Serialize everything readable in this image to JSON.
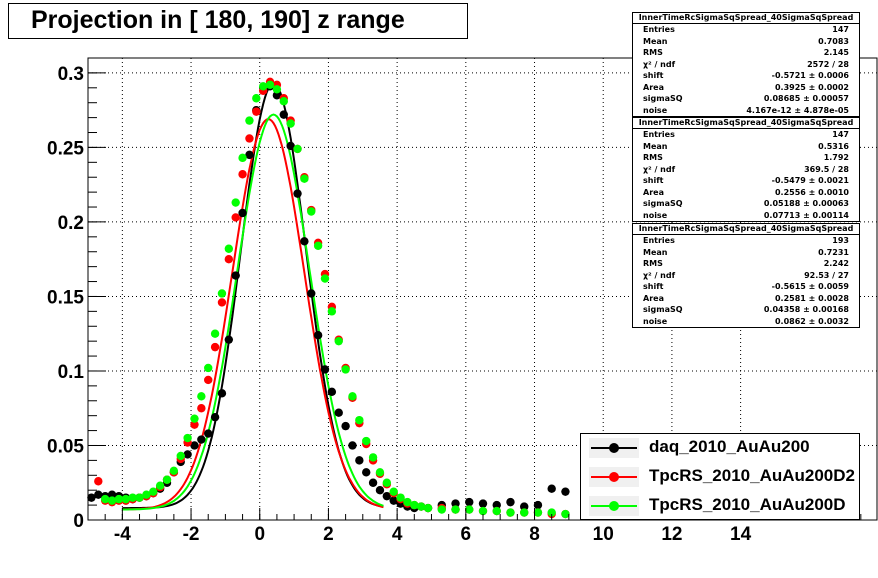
{
  "title": "Projection in [ 180, 190] z range",
  "colors": {
    "daq": "#000000",
    "d2": "#ff0000",
    "d": "#00ff00"
  },
  "chart_data": {
    "type": "scatter",
    "xlim": [
      -5,
      18
    ],
    "ylim": [
      0,
      0.31
    ],
    "x_ticks": [
      "-4",
      "-2",
      "0",
      "2",
      "4",
      "6",
      "8",
      "10",
      "12",
      "14"
    ],
    "y_ticks": [
      "0",
      "0.05",
      "0.1",
      "0.15",
      "0.2",
      "0.25",
      "0.3"
    ],
    "grid": true,
    "legend_position": "bottom-right",
    "series": [
      {
        "name": "daq_2010_AuAu200",
        "color": "#000000",
        "fit": {
          "mean": 0.4,
          "sigma": 0.95,
          "amp": 0.285,
          "base": 0.008
        },
        "x": [
          -4.9,
          -4.7,
          -4.5,
          -4.3,
          -4.1,
          -3.9,
          -3.7,
          -3.5,
          -3.3,
          -3.1,
          -2.9,
          -2.7,
          -2.5,
          -2.3,
          -2.1,
          -1.9,
          -1.7,
          -1.5,
          -1.3,
          -1.1,
          -0.9,
          -0.7,
          -0.5,
          -0.3,
          -0.1,
          0.1,
          0.3,
          0.5,
          0.7,
          0.9,
          1.1,
          1.3,
          1.5,
          1.7,
          1.9,
          2.1,
          2.3,
          2.5,
          2.7,
          2.9,
          3.1,
          3.3,
          3.5,
          3.7,
          3.9,
          4.1,
          4.3,
          4.5,
          4.7,
          4.9,
          5.3,
          5.7,
          6.1,
          6.5,
          6.9,
          7.3,
          7.7,
          8.1,
          8.5,
          8.9
        ],
        "y": [
          0.015,
          0.017,
          0.016,
          0.017,
          0.016,
          0.015,
          0.014,
          0.015,
          0.016,
          0.018,
          0.021,
          0.025,
          0.032,
          0.039,
          0.044,
          0.05,
          0.054,
          0.058,
          0.069,
          0.085,
          0.121,
          0.164,
          0.206,
          0.245,
          0.275,
          0.29,
          0.291,
          0.285,
          0.272,
          0.251,
          0.219,
          0.187,
          0.152,
          0.124,
          0.101,
          0.086,
          0.072,
          0.063,
          0.05,
          0.04,
          0.032,
          0.025,
          0.02,
          0.016,
          0.013,
          0.011,
          0.009,
          0.008,
          0.009,
          0.008,
          0.01,
          0.011,
          0.012,
          0.011,
          0.01,
          0.012,
          0.009,
          0.01,
          0.021,
          0.019
        ]
      },
      {
        "name": "TpcRS_2010_AuAu200D2",
        "color": "#ff0000",
        "fit": {
          "mean": 0.25,
          "sigma": 1.05,
          "amp": 0.262,
          "base": 0.007
        },
        "x": [
          -4.7,
          -4.5,
          -4.3,
          -4.1,
          -3.9,
          -3.7,
          -3.5,
          -3.3,
          -3.1,
          -2.9,
          -2.7,
          -2.5,
          -2.3,
          -2.1,
          -1.9,
          -1.7,
          -1.5,
          -1.3,
          -1.1,
          -0.9,
          -0.7,
          -0.5,
          -0.3,
          -0.1,
          0.1,
          0.3,
          0.5,
          0.7,
          0.9,
          1.1,
          1.3,
          1.5,
          1.7,
          1.9,
          2.1,
          2.3,
          2.5,
          2.7,
          2.9,
          3.1,
          3.3,
          3.5,
          3.7,
          3.9,
          4.1,
          4.3,
          4.5,
          4.7,
          4.9,
          5.3,
          5.7,
          6.1,
          6.5,
          6.9,
          7.3,
          7.7,
          8.1,
          8.5,
          8.9
        ],
        "y": [
          0.026,
          0.013,
          0.012,
          0.013,
          0.013,
          0.014,
          0.015,
          0.016,
          0.018,
          0.022,
          0.027,
          0.032,
          0.041,
          0.052,
          0.064,
          0.075,
          0.094,
          0.116,
          0.146,
          0.175,
          0.203,
          0.232,
          0.256,
          0.274,
          0.288,
          0.294,
          0.292,
          0.283,
          0.268,
          0.249,
          0.23,
          0.208,
          0.186,
          0.165,
          0.143,
          0.121,
          0.102,
          0.082,
          0.065,
          0.051,
          0.04,
          0.031,
          0.024,
          0.018,
          0.014,
          0.011,
          0.01,
          0.009,
          0.008,
          0.008,
          0.007,
          0.007,
          0.006,
          0.006,
          0.005,
          0.005,
          0.005,
          0.004,
          0.004
        ]
      },
      {
        "name": "TpcRS_2010_AuAu200D",
        "color": "#00ff00",
        "fit": {
          "mean": 0.4,
          "sigma": 1.05,
          "amp": 0.265,
          "base": 0.007
        },
        "x": [
          -4.5,
          -4.3,
          -4.1,
          -3.9,
          -3.7,
          -3.5,
          -3.3,
          -3.1,
          -2.9,
          -2.7,
          -2.5,
          -2.3,
          -2.1,
          -1.9,
          -1.7,
          -1.5,
          -1.3,
          -1.1,
          -0.9,
          -0.7,
          -0.5,
          -0.3,
          -0.1,
          0.1,
          0.3,
          0.5,
          0.7,
          0.9,
          1.1,
          1.3,
          1.5,
          1.7,
          1.9,
          2.1,
          2.3,
          2.5,
          2.7,
          2.9,
          3.1,
          3.3,
          3.5,
          3.7,
          3.9,
          4.1,
          4.3,
          4.5,
          4.7,
          4.9,
          5.3,
          5.7,
          6.1,
          6.5,
          6.9,
          7.3,
          7.7,
          8.1,
          8.5,
          8.9
        ],
        "y": [
          0.014,
          0.013,
          0.014,
          0.014,
          0.015,
          0.015,
          0.017,
          0.019,
          0.023,
          0.027,
          0.033,
          0.043,
          0.055,
          0.068,
          0.083,
          0.102,
          0.125,
          0.152,
          0.182,
          0.213,
          0.243,
          0.268,
          0.283,
          0.291,
          0.292,
          0.289,
          0.281,
          0.266,
          0.249,
          0.229,
          0.207,
          0.184,
          0.162,
          0.14,
          0.12,
          0.101,
          0.083,
          0.067,
          0.053,
          0.042,
          0.032,
          0.025,
          0.019,
          0.015,
          0.012,
          0.01,
          0.009,
          0.008,
          0.007,
          0.007,
          0.007,
          0.006,
          0.006,
          0.005,
          0.005,
          0.005,
          0.005,
          0.004
        ]
      }
    ]
  },
  "stats": [
    {
      "title": "InnerTimeRcSigmaSqSpread_40SigmaSqSpread",
      "rows": [
        {
          "k": "Entries",
          "v": "147"
        },
        {
          "k": "Mean",
          "v": "0.7083"
        },
        {
          "k": "RMS",
          "v": "2.145"
        },
        {
          "k": "χ² / ndf",
          "v": "2572 / 28"
        },
        {
          "k": "shift",
          "v": "-0.5721 ± 0.0006"
        },
        {
          "k": "Area",
          "v": "0.3925 ± 0.0002"
        },
        {
          "k": "sigmaSQ",
          "v": "0.08685 ± 0.00057"
        },
        {
          "k": "noise",
          "v": "4.167e-12 ± 4.878e-05"
        }
      ]
    },
    {
      "title": "InnerTimeRcSigmaSqSpread_40SigmaSqSpread",
      "rows": [
        {
          "k": "Entries",
          "v": "147"
        },
        {
          "k": "Mean",
          "v": "0.5316"
        },
        {
          "k": "RMS",
          "v": "1.792"
        },
        {
          "k": "χ² / ndf",
          "v": "369.5 / 28"
        },
        {
          "k": "shift",
          "v": "-0.5479 ± 0.0021"
        },
        {
          "k": "Area",
          "v": "0.2556 ± 0.0010"
        },
        {
          "k": "sigmaSQ",
          "v": "0.05188 ± 0.00063"
        },
        {
          "k": "noise",
          "v": "0.07713 ± 0.00114"
        }
      ]
    },
    {
      "title": "InnerTimeRcSigmaSqSpread_40SigmaSqSpread",
      "rows": [
        {
          "k": "Entries",
          "v": "193"
        },
        {
          "k": "Mean",
          "v": "0.7231"
        },
        {
          "k": "RMS",
          "v": "2.242"
        },
        {
          "k": "χ² / ndf",
          "v": "92.53 / 27"
        },
        {
          "k": "shift",
          "v": "-0.5615 ± 0.0059"
        },
        {
          "k": "Area",
          "v": "0.2581 ± 0.0028"
        },
        {
          "k": "sigmaSQ",
          "v": "0.04358 ± 0.00168"
        },
        {
          "k": "noise",
          "v": "0.0862 ± 0.0032"
        }
      ]
    }
  ]
}
